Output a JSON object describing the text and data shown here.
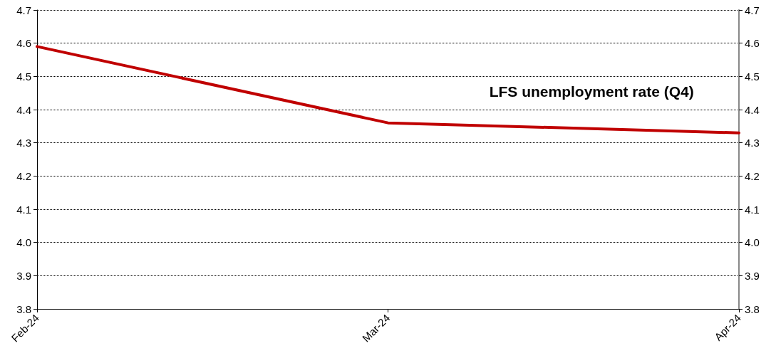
{
  "chart_data": {
    "type": "line",
    "categories": [
      "Feb-24",
      "Mar-24",
      "Apr-24"
    ],
    "series": [
      {
        "name": "LFS unemployment rate (Q4)",
        "color": "#c00000",
        "values": [
          4.59,
          4.36,
          4.33
        ]
      }
    ],
    "ylim": [
      3.8,
      4.7
    ],
    "yticks": [
      3.8,
      3.9,
      {
        "value": 4.0,
        "label": "4.0"
      },
      4.1,
      4.2,
      4.3,
      4.4,
      4.5,
      4.6,
      4.7
    ],
    "y2lim": [
      3.8,
      4.7
    ],
    "y2ticks": [
      3.8,
      3.9,
      {
        "value": 4.0,
        "label": "4.0"
      },
      4.1,
      4.2,
      4.3,
      4.4,
      4.5,
      4.6,
      4.7
    ],
    "grid": "y",
    "legend": false,
    "marker": "none",
    "line_style": "solid"
  }
}
